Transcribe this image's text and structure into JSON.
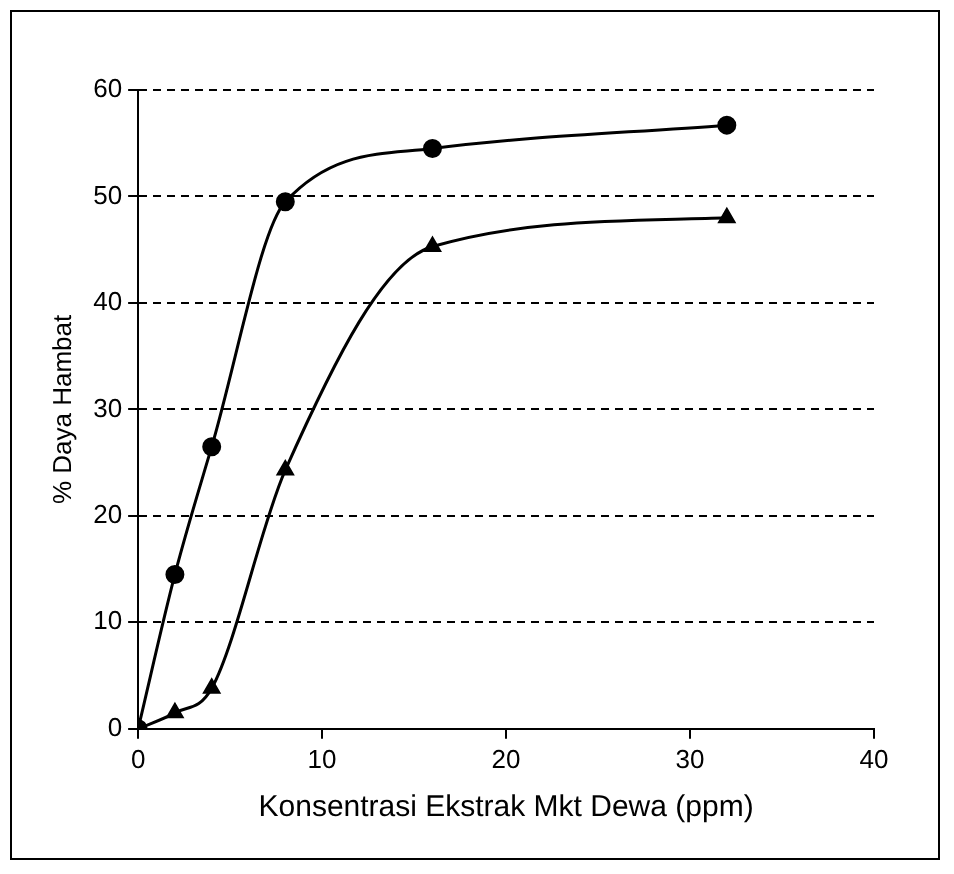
{
  "chart_data": {
    "type": "line",
    "xlabel": "Konsentrasi Ekstrak Mkt Dewa (ppm)",
    "ylabel": "% Daya Hambat",
    "x": [
      0,
      2,
      4,
      8,
      16,
      32
    ],
    "series": [
      {
        "color": "#000000",
        "marker": "circle",
        "values": [
          0,
          14.5,
          26.5,
          49.5,
          54.5,
          56.7
        ]
      },
      {
        "color": "#000000",
        "marker": "triangle",
        "values": [
          0,
          1.5,
          3.8,
          24.3,
          45.3,
          48
        ]
      }
    ],
    "xlim": [
      0,
      40
    ],
    "xticks": [
      0,
      10,
      20,
      30,
      40
    ],
    "ylim": [
      0,
      60
    ],
    "yticks": [
      0,
      10,
      20,
      30,
      40,
      50,
      60
    ],
    "grid": "y",
    "legend": false
  }
}
